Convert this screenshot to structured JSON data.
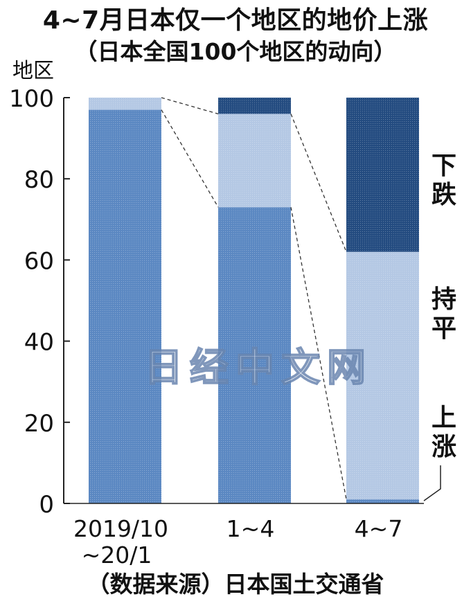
{
  "title": "4~7月日本仅一个地区的地价上涨",
  "subtitle": "（日本全国100个地区的动向）",
  "source": "（数据来源）日本国土交通省",
  "watermark": "日经中文网",
  "colors": {
    "rise": "#5b88c2",
    "flat": "#b4c8e4",
    "fall": "#234b80",
    "axis": "#222222",
    "connector": "#333333"
  },
  "chart_data": {
    "type": "bar",
    "stacked": true,
    "y_unit_label": "地区",
    "ylim": [
      0,
      100
    ],
    "yticks": [
      0,
      20,
      40,
      60,
      80,
      100
    ],
    "categories": [
      {
        "line1": "2019/10",
        "line2": "~20/1"
      },
      {
        "line1": "1~4",
        "line2": ""
      },
      {
        "line1": "4~7",
        "line2": ""
      }
    ],
    "series": [
      {
        "key": "rise",
        "name": "上涨",
        "values": [
          97,
          73,
          1
        ]
      },
      {
        "key": "flat",
        "name": "持平",
        "values": [
          3,
          23,
          61
        ]
      },
      {
        "key": "fall",
        "name": "下跌",
        "values": [
          0,
          4,
          38
        ]
      }
    ],
    "right_labels": [
      {
        "text": "下跌",
        "series": "fall"
      },
      {
        "text": "持平",
        "series": "flat"
      },
      {
        "text": "上涨",
        "series": "rise"
      }
    ]
  }
}
